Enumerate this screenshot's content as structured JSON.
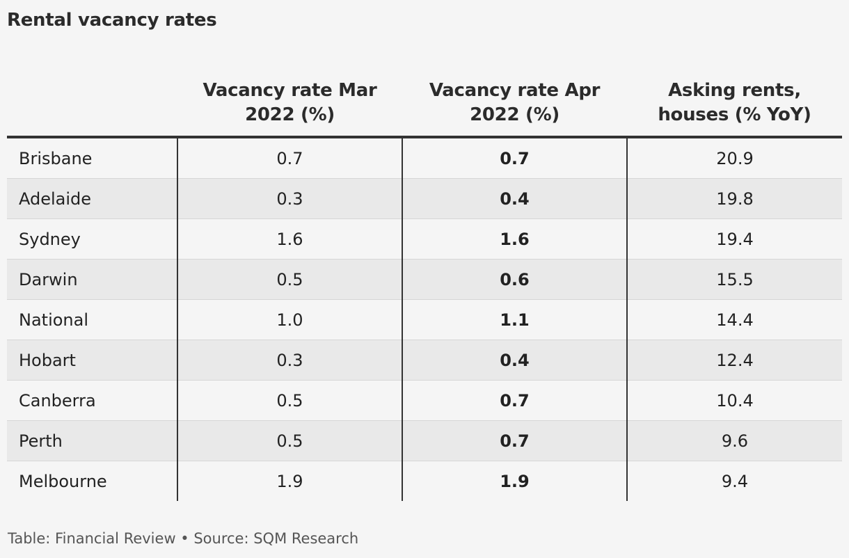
{
  "title": "Rental vacancy rates",
  "footer": "Table: Financial Review • Source: SQM Research",
  "chart_data": {
    "type": "table",
    "title": "Rental vacancy rates",
    "columns": [
      "",
      "Vacancy rate Mar 2022 (%)",
      "Vacancy rate Apr 2022 (%)",
      "Asking rents, houses (% YoY)"
    ],
    "rows": [
      [
        "Brisbane",
        "0.7",
        "0.7",
        "20.9"
      ],
      [
        "Adelaide",
        "0.3",
        "0.4",
        "19.8"
      ],
      [
        "Sydney",
        "1.6",
        "1.6",
        "19.4"
      ],
      [
        "Darwin",
        "0.5",
        "0.6",
        "15.5"
      ],
      [
        "National",
        "1.0",
        "1.1",
        "14.4"
      ],
      [
        "Hobart",
        "0.3",
        "0.4",
        "12.4"
      ],
      [
        "Canberra",
        "0.5",
        "0.7",
        "10.4"
      ],
      [
        "Perth",
        "0.5",
        "0.7",
        "9.6"
      ],
      [
        "Melbourne",
        "1.9",
        "1.9",
        "9.4"
      ]
    ],
    "bold_column": 2,
    "source": "Table: Financial Review • Source: SQM Research"
  }
}
